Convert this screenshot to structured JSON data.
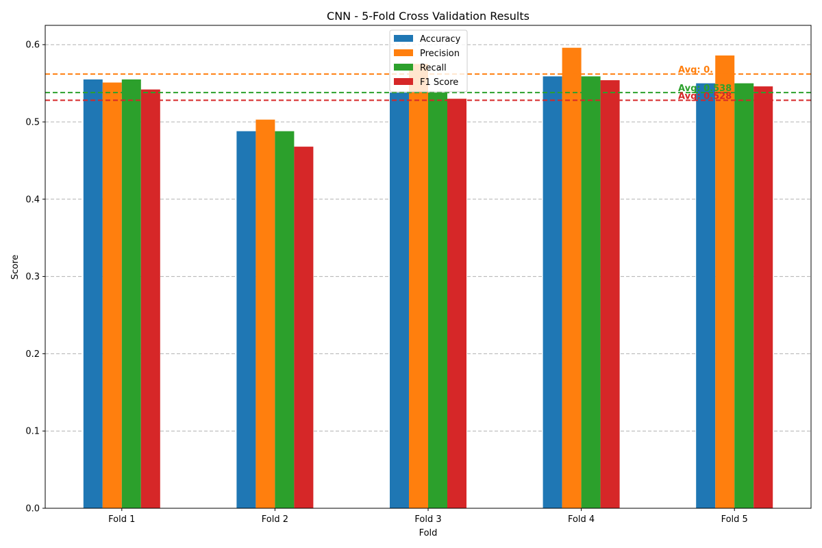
{
  "chart_data": {
    "type": "bar",
    "title": "CNN - 5-Fold Cross Validation Results",
    "xlabel": "Fold",
    "ylabel": "Score",
    "ylim": [
      0,
      0.625
    ],
    "yticks": [
      "0.0",
      "0.1",
      "0.2",
      "0.3",
      "0.4",
      "0.5",
      "0.6"
    ],
    "grid": "horizontal dashed",
    "legend_position": "top-center",
    "categories": [
      "Fold 1",
      "Fold 2",
      "Fold 3",
      "Fold 4",
      "Fold 5"
    ],
    "series": [
      {
        "name": "Accuracy",
        "color": "#1f77b4",
        "values": [
          0.555,
          0.488,
          0.538,
          0.559,
          0.55
        ]
      },
      {
        "name": "Precision",
        "color": "#ff7f0e",
        "values": [
          0.551,
          0.503,
          0.575,
          0.596,
          0.586
        ]
      },
      {
        "name": "Recall",
        "color": "#2ca02c",
        "values": [
          0.555,
          0.488,
          0.538,
          0.559,
          0.55
        ]
      },
      {
        "name": "F1 Score",
        "color": "#d62728",
        "values": [
          0.542,
          0.468,
          0.53,
          0.554,
          0.546
        ]
      }
    ],
    "averages": [
      {
        "label": "Avg: 0.",
        "value": 0.562,
        "color": "#ff7f0e"
      },
      {
        "label": "Avg: 0.538",
        "value": 0.538,
        "color": "#2ca02c"
      },
      {
        "label": "Avg: 0.528",
        "value": 0.528,
        "color": "#d62728"
      }
    ]
  }
}
